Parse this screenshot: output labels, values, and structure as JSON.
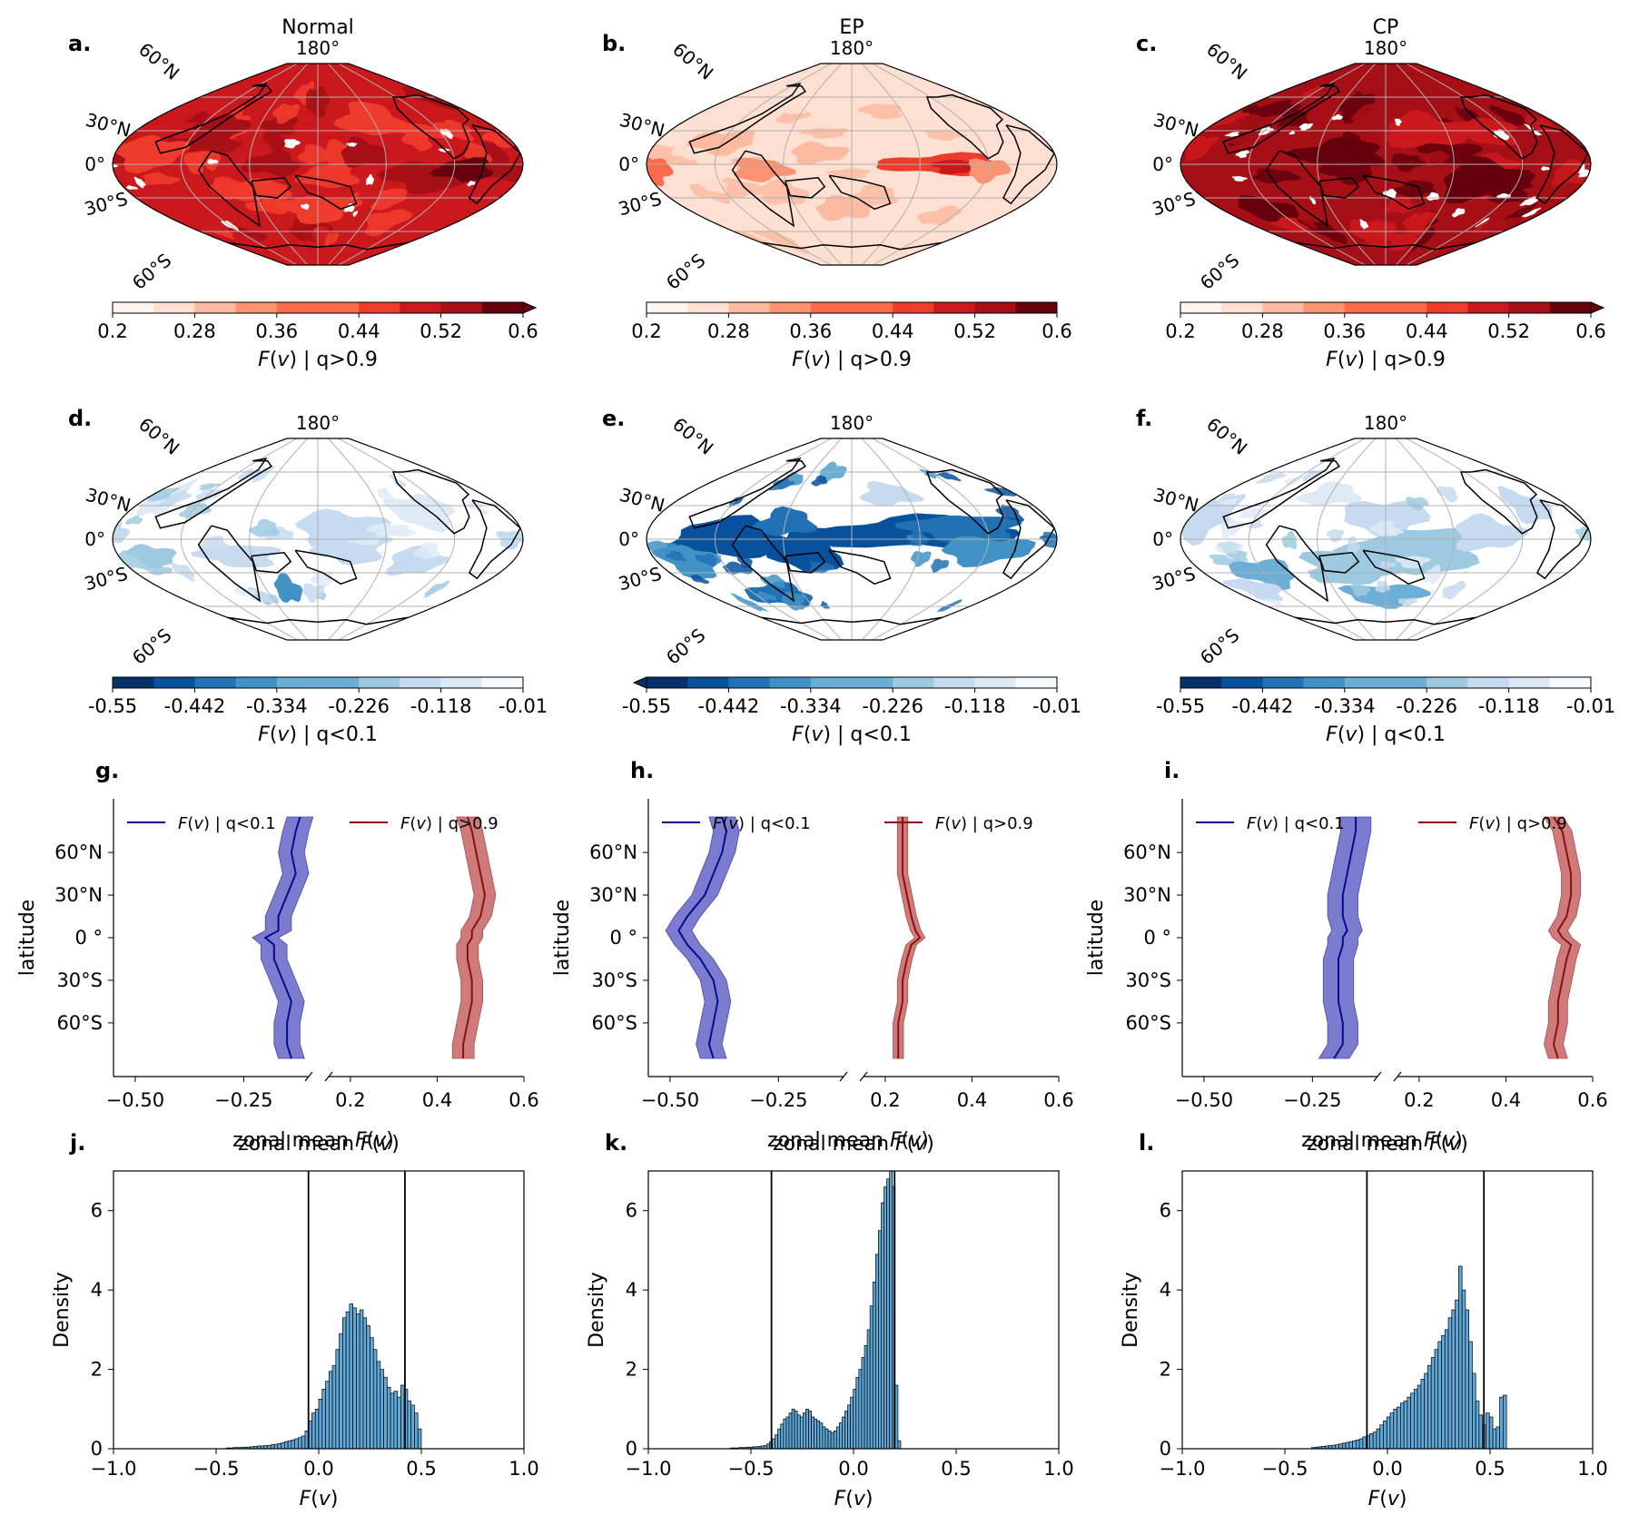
{
  "panels": {
    "a": {
      "letter": "a.",
      "title": "Normal",
      "lon_label": "180°",
      "lat_labels": [
        "60°N",
        "30°N",
        "0°",
        "30°S",
        "60°S"
      ],
      "cbar_ticks": [
        "0.2",
        "0.28",
        "0.36",
        "0.44",
        "0.52",
        "0.6"
      ],
      "cbar_label": "F(v) | q>0.9"
    },
    "b": {
      "letter": "b.",
      "title": "EP",
      "lon_label": "180°",
      "lat_labels": [
        "60°N",
        "30°N",
        "0°",
        "30°S",
        "60°S"
      ],
      "cbar_ticks": [
        "0.2",
        "0.28",
        "0.36",
        "0.44",
        "0.52",
        "0.6"
      ],
      "cbar_label": "F(v) | q>0.9"
    },
    "c": {
      "letter": "c.",
      "title": "CP",
      "lon_label": "180°",
      "lat_labels": [
        "60°N",
        "30°N",
        "0°",
        "30°S",
        "60°S"
      ],
      "cbar_ticks": [
        "0.2",
        "0.28",
        "0.36",
        "0.44",
        "0.52",
        "0.6"
      ],
      "cbar_label": "F(v) | q>0.9"
    },
    "d": {
      "letter": "d.",
      "lon_label": "180°",
      "lat_labels": [
        "60°N",
        "30°N",
        "0°",
        "30°S",
        "60°S"
      ],
      "cbar_ticks": [
        "-0.55",
        "-0.442",
        "-0.334",
        "-0.226",
        "-0.118",
        "-0.01"
      ],
      "cbar_label": "F(v) | q<0.1"
    },
    "e": {
      "letter": "e.",
      "lon_label": "180°",
      "lat_labels": [
        "60°N",
        "30°N",
        "0°",
        "30°S",
        "60°S"
      ],
      "cbar_ticks": [
        "-0.55",
        "-0.442",
        "-0.334",
        "-0.226",
        "-0.118",
        "-0.01"
      ],
      "cbar_label": "F(v) | q<0.1"
    },
    "f": {
      "letter": "f.",
      "lon_label": "180°",
      "lat_labels": [
        "60°N",
        "30°N",
        "0°",
        "30°S",
        "60°S"
      ],
      "cbar_ticks": [
        "-0.55",
        "-0.442",
        "-0.334",
        "-0.226",
        "-0.118",
        "-0.01"
      ],
      "cbar_label": "F(v) | q<0.1"
    },
    "g": {
      "letter": "g."
    },
    "h": {
      "letter": "h."
    },
    "i": {
      "letter": "i."
    },
    "j": {
      "letter": "j."
    },
    "k": {
      "letter": "k."
    },
    "l": {
      "letter": "l."
    }
  },
  "colors": {
    "reds": [
      "#fff5f0",
      "#fee0d2",
      "#fcbba1",
      "#fc9272",
      "#fb6a4a",
      "#ef3b2c",
      "#cb181d",
      "#a50f15",
      "#67000d"
    ],
    "blues": [
      "#08306b",
      "#08519c",
      "#2171b5",
      "#4292c6",
      "#6baed6",
      "#9ecae1",
      "#c6dbef",
      "#deebf7",
      "#f7fbff"
    ],
    "low_line": "#0a0a8c",
    "low_fill": "#5050c0",
    "high_line": "#8b1010",
    "high_fill": "#c05050",
    "hist_fill": "#5fa8d8"
  },
  "chart_data": [
    {
      "type": "heatmap",
      "panel": "a",
      "title": "Normal",
      "variable": "F(v) | q>0.9",
      "colorbar_range": [
        0.2,
        0.6
      ],
      "colorbar_ticks": [
        0.2,
        0.28,
        0.36,
        0.44,
        0.52,
        0.6
      ],
      "extend": "max",
      "typical_value": 0.5
    },
    {
      "type": "heatmap",
      "panel": "b",
      "title": "EP",
      "variable": "F(v) | q>0.9",
      "colorbar_range": [
        0.2,
        0.6
      ],
      "colorbar_ticks": [
        0.2,
        0.28,
        0.36,
        0.44,
        0.52,
        0.6
      ],
      "extend": "neither",
      "typical_value": 0.24
    },
    {
      "type": "heatmap",
      "panel": "c",
      "title": "CP",
      "variable": "F(v) | q>0.9",
      "colorbar_range": [
        0.2,
        0.6
      ],
      "colorbar_ticks": [
        0.2,
        0.28,
        0.36,
        0.44,
        0.52,
        0.6
      ],
      "extend": "max",
      "typical_value": 0.54
    },
    {
      "type": "heatmap",
      "panel": "d",
      "variable": "F(v) | q<0.1",
      "colorbar_range": [
        -0.55,
        -0.01
      ],
      "colorbar_ticks": [
        -0.55,
        -0.442,
        -0.334,
        -0.226,
        -0.118,
        -0.01
      ],
      "extend": "neither"
    },
    {
      "type": "heatmap",
      "panel": "e",
      "variable": "F(v) | q<0.1",
      "colorbar_range": [
        -0.55,
        -0.01
      ],
      "colorbar_ticks": [
        -0.55,
        -0.442,
        -0.334,
        -0.226,
        -0.118,
        -0.01
      ],
      "extend": "min"
    },
    {
      "type": "heatmap",
      "panel": "f",
      "variable": "F(v) | q<0.1",
      "colorbar_range": [
        -0.55,
        -0.01
      ],
      "colorbar_ticks": [
        -0.55,
        -0.442,
        -0.334,
        -0.226,
        -0.118,
        -0.01
      ],
      "extend": "neither"
    },
    {
      "type": "line",
      "panel": "g",
      "ylabel": "latitude",
      "xlabel": "zonal mean F(v)",
      "ytick_labels": [
        "60$^\\circ$N",
        "30$^\\circ$N",
        "0$^\\circ$",
        "30$^\\circ$S",
        "60$^\\circ$S"
      ],
      "left_xlim": [
        -0.55,
        -0.1
      ],
      "left_xticks": [
        -0.5,
        -0.25
      ],
      "right_xlim": [
        0.15,
        0.6
      ],
      "right_xticks": [
        0.2,
        0.4,
        0.6
      ],
      "legend": [
        "F(v) | q<0.1",
        "F(v) | q>0.9"
      ],
      "lat": [
        85,
        75,
        60,
        45,
        30,
        15,
        5,
        0,
        -5,
        -15,
        -30,
        -45,
        -60,
        -75,
        -85
      ],
      "series": [
        {
          "name": "F(v) | q<0.1",
          "values": [
            -0.12,
            -0.13,
            -0.14,
            -0.13,
            -0.15,
            -0.17,
            -0.17,
            -0.2,
            -0.18,
            -0.18,
            -0.16,
            -0.14,
            -0.15,
            -0.15,
            -0.14
          ],
          "spread": 0.03
        },
        {
          "name": "F(v) | q>0.9",
          "values": [
            0.47,
            0.48,
            0.49,
            0.5,
            0.51,
            0.5,
            0.48,
            0.48,
            0.47,
            0.47,
            0.48,
            0.48,
            0.47,
            0.46,
            0.46
          ],
          "spread": 0.025
        }
      ]
    },
    {
      "type": "line",
      "panel": "h",
      "ylabel": "latitude",
      "xlabel": "zonal mean F(v)",
      "ytick_labels": [
        "60$^\\circ$N",
        "30$^\\circ$N",
        "0$^\\circ$",
        "30$^\\circ$S",
        "60$^\\circ$S"
      ],
      "left_xlim": [
        -0.55,
        -0.1
      ],
      "left_xticks": [
        -0.5,
        -0.25
      ],
      "right_xlim": [
        0.15,
        0.6
      ],
      "right_xticks": [
        0.2,
        0.4,
        0.6
      ],
      "legend": [
        "F(v) | q<0.1",
        "F(v) | q>0.9"
      ],
      "lat": [
        85,
        75,
        60,
        45,
        30,
        15,
        5,
        0,
        -5,
        -15,
        -30,
        -45,
        -60,
        -75,
        -85
      ],
      "series": [
        {
          "name": "F(v) | q<0.1",
          "values": [
            -0.38,
            -0.37,
            -0.38,
            -0.4,
            -0.42,
            -0.46,
            -0.48,
            -0.47,
            -0.46,
            -0.43,
            -0.4,
            -0.39,
            -0.4,
            -0.41,
            -0.4
          ],
          "spread": 0.03
        },
        {
          "name": "F(v) | q>0.9",
          "values": [
            0.24,
            0.24,
            0.24,
            0.24,
            0.25,
            0.26,
            0.27,
            0.28,
            0.26,
            0.25,
            0.24,
            0.24,
            0.23,
            0.23,
            0.23
          ],
          "spread": 0.012
        }
      ]
    },
    {
      "type": "line",
      "panel": "i",
      "ylabel": "latitude",
      "xlabel": "zonal mean F(v)",
      "ytick_labels": [
        "60$^\\circ$N",
        "30$^\\circ$N",
        "0$^\\circ$",
        "30$^\\circ$S",
        "60$^\\circ$S"
      ],
      "left_xlim": [
        -0.55,
        -0.1
      ],
      "left_xticks": [
        -0.5,
        -0.25
      ],
      "right_xlim": [
        0.15,
        0.6
      ],
      "right_xticks": [
        0.2,
        0.4,
        0.6
      ],
      "legend": [
        "F(v) | q<0.1",
        "F(v) | q>0.9"
      ],
      "lat": [
        85,
        75,
        60,
        45,
        30,
        15,
        5,
        0,
        -5,
        -15,
        -30,
        -45,
        -60,
        -75,
        -85
      ],
      "series": [
        {
          "name": "F(v) | q<0.1",
          "values": [
            -0.15,
            -0.15,
            -0.16,
            -0.17,
            -0.18,
            -0.18,
            -0.17,
            -0.18,
            -0.18,
            -0.19,
            -0.19,
            -0.19,
            -0.18,
            -0.18,
            -0.2
          ],
          "spread": 0.035
        },
        {
          "name": "F(v) | q>0.9",
          "values": [
            0.51,
            0.53,
            0.54,
            0.55,
            0.55,
            0.54,
            0.52,
            0.53,
            0.55,
            0.54,
            0.53,
            0.52,
            0.52,
            0.51,
            0.52
          ],
          "spread": 0.022
        }
      ]
    },
    {
      "type": "bar",
      "panel": "j",
      "xlabel": "F(v)",
      "ylabel": "Density",
      "xlim": [
        -1.0,
        1.0
      ],
      "ylim": [
        0,
        7
      ],
      "xticks": [
        "−1.0",
        "−0.5",
        "0.0",
        "0.5",
        "1.0"
      ],
      "yticks": [
        "0",
        "2",
        "4",
        "6"
      ],
      "vlines": [
        -0.05,
        0.42
      ],
      "bin_edges_range": [
        -0.45,
        0.5
      ],
      "bin_width": 0.0167,
      "values": [
        0.02,
        0.02,
        0.03,
        0.03,
        0.03,
        0.04,
        0.04,
        0.05,
        0.06,
        0.07,
        0.07,
        0.08,
        0.08,
        0.1,
        0.11,
        0.13,
        0.15,
        0.18,
        0.2,
        0.22,
        0.25,
        0.28,
        0.32,
        0.45,
        0.7,
        0.9,
        1.0,
        1.25,
        1.5,
        1.7,
        1.95,
        2.1,
        2.5,
        2.9,
        3.3,
        3.45,
        3.65,
        3.55,
        3.4,
        3.5,
        3.3,
        3.1,
        2.8,
        2.5,
        2.2,
        2.0,
        1.8,
        1.55,
        1.4,
        1.45,
        1.3,
        1.6,
        1.5,
        1.2,
        1.1,
        0.9,
        0.5
      ]
    },
    {
      "type": "bar",
      "panel": "k",
      "xlabel": "F(v)",
      "ylabel": "Density",
      "xlim": [
        -1.0,
        1.0
      ],
      "ylim": [
        0,
        7
      ],
      "xticks": [
        "−1.0",
        "−0.5",
        "0.0",
        "0.5",
        "1.0"
      ],
      "yticks": [
        "0",
        "2",
        "4",
        "6"
      ],
      "vlines": [
        -0.4,
        0.2
      ],
      "bin_edges_range": [
        -0.6,
        0.23
      ],
      "bin_width": 0.0138,
      "values": [
        0.02,
        0.02,
        0.02,
        0.03,
        0.03,
        0.03,
        0.04,
        0.04,
        0.05,
        0.05,
        0.06,
        0.07,
        0.08,
        0.12,
        0.18,
        0.25,
        0.35,
        0.5,
        0.62,
        0.75,
        0.8,
        0.9,
        1.0,
        0.95,
        0.85,
        0.8,
        0.9,
        1.0,
        0.95,
        0.8,
        0.75,
        0.7,
        0.65,
        0.55,
        0.5,
        0.45,
        0.4,
        0.45,
        0.55,
        0.65,
        0.8,
        0.95,
        1.1,
        1.3,
        1.5,
        1.8,
        2.0,
        2.3,
        2.6,
        3.0,
        3.6,
        4.2,
        4.9,
        5.5,
        6.2,
        6.6,
        6.8,
        7.0,
        6.6,
        1.6,
        0.2
      ]
    },
    {
      "type": "bar",
      "panel": "l",
      "xlabel": "F(v)",
      "ylabel": "Density",
      "xlim": [
        -1.0,
        1.0
      ],
      "ylim": [
        0,
        7
      ],
      "xticks": [
        "−1.0",
        "−0.5",
        "0.0",
        "0.5",
        "1.0"
      ],
      "yticks": [
        "0",
        "2",
        "4",
        "6"
      ],
      "vlines": [
        -0.1,
        0.47
      ],
      "bin_edges_range": [
        -0.37,
        0.58
      ],
      "bin_width": 0.0167,
      "values": [
        0.03,
        0.04,
        0.05,
        0.06,
        0.07,
        0.08,
        0.09,
        0.1,
        0.12,
        0.14,
        0.16,
        0.18,
        0.2,
        0.22,
        0.25,
        0.3,
        0.33,
        0.38,
        0.42,
        0.5,
        0.6,
        0.7,
        0.8,
        0.9,
        1.0,
        1.05,
        1.15,
        1.2,
        1.3,
        1.4,
        1.5,
        1.6,
        1.75,
        1.9,
        2.1,
        2.3,
        2.5,
        2.7,
        2.85,
        3.0,
        3.3,
        3.5,
        3.75,
        4.6,
        4.0,
        3.5,
        2.7,
        1.9,
        1.2,
        0.85,
        0.6,
        0.9,
        0.8,
        0.5,
        0.55,
        1.3,
        1.35
      ]
    }
  ]
}
